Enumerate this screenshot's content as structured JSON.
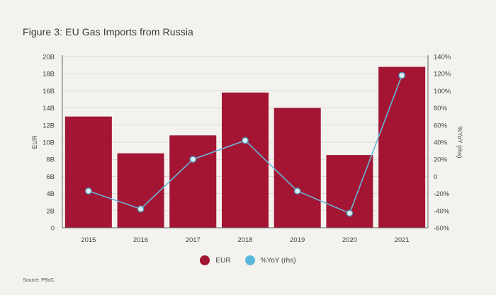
{
  "title": "Figure 3: EU Gas Imports from Russia",
  "source": "Source: PBoC.",
  "colors": {
    "bar": "#a31533",
    "line": "#6bb6d6",
    "marker_fill": "#dcecf3",
    "grid": "#d2d0ca",
    "axis": "#666666"
  },
  "legend": [
    {
      "label": "EUR",
      "color": "#a31533"
    },
    {
      "label": "%YoY (rhs)",
      "color": "#5bb7dc"
    }
  ],
  "chart_data": {
    "type": "bar",
    "categories": [
      "2015",
      "2016",
      "2017",
      "2018",
      "2019",
      "2020",
      "2021"
    ],
    "series": [
      {
        "name": "EUR",
        "type": "bar",
        "axis": "left",
        "values": [
          13.0,
          8.7,
          10.8,
          15.8,
          14.0,
          8.5,
          18.8
        ]
      },
      {
        "name": "%YoY (rhs)",
        "type": "line",
        "axis": "right",
        "values": [
          -17,
          -38,
          20,
          42,
          -17,
          -43,
          118
        ]
      }
    ],
    "ylabel": "EUR",
    "y2label": "%YoY (rhs)",
    "ylim": [
      0,
      20
    ],
    "y2lim": [
      -60,
      140
    ],
    "yticks": [
      "0",
      "2B",
      "4B",
      "6B",
      "8B",
      "10B",
      "12B",
      "14B",
      "16B",
      "18B",
      "20B"
    ],
    "y2ticks": [
      "-60%",
      "-40%",
      "-20%",
      "0",
      "20%",
      "40%",
      "60%",
      "80%",
      "100%",
      "120%",
      "140%"
    ],
    "grid": true,
    "legend_position": "bottom-center"
  }
}
